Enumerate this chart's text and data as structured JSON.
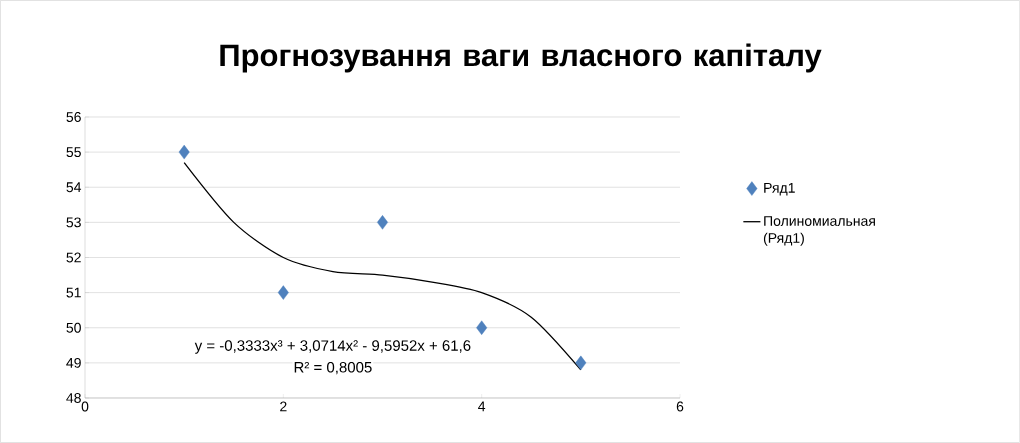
{
  "chart_data": {
    "type": "scatter",
    "title": "Прогнозування ваги власного капіталу",
    "series": [
      {
        "name": "Ряд1",
        "color": "#4f81bd",
        "marker": "diamond",
        "x": [
          1,
          2,
          3,
          4,
          5
        ],
        "values": [
          55,
          51,
          53,
          50,
          49
        ]
      },
      {
        "name": "Полиномиальная (Ряд1)",
        "type": "line",
        "color": "#000000",
        "marker": "none",
        "x": [
          1,
          1.5,
          2,
          2.5,
          3,
          3.5,
          4,
          4.5,
          5
        ],
        "values": [
          54.7,
          53.0,
          52.0,
          51.6,
          51.5,
          51.3,
          51.0,
          50.3,
          48.8
        ]
      }
    ],
    "annotations": [
      "y = -0,3333x³ + 3,0714x² - 9,5952x + 61,6",
      "R² = 0,8005"
    ],
    "xlim": [
      0,
      6
    ],
    "xticks": [
      0,
      2,
      4,
      6
    ],
    "ylim": [
      48,
      56
    ],
    "yticks": [
      48,
      49,
      50,
      51,
      52,
      53,
      54,
      55,
      56
    ],
    "grid": "y",
    "legend": "right"
  }
}
